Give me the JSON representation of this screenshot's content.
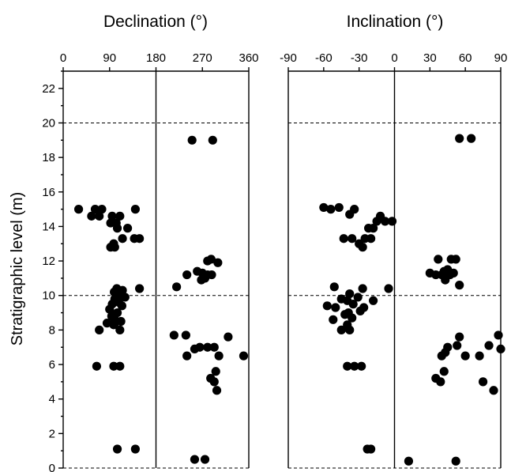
{
  "chart_data": {
    "type": "scatter",
    "ylabel": "Stratigraphic level (m)",
    "ylim": [
      0,
      23
    ],
    "yticks": [
      0,
      2,
      4,
      6,
      8,
      10,
      12,
      14,
      16,
      18,
      20,
      22
    ],
    "reference_lines_y": [
      10,
      20,
      0
    ],
    "panels": [
      {
        "title": "Declination (°)",
        "xlim": [
          0,
          360
        ],
        "xticks": [
          0,
          90,
          180,
          270,
          360
        ],
        "divider_x": 180,
        "points": [
          [
            30,
            15.0
          ],
          [
            62,
            15.0
          ],
          [
            75,
            15.0
          ],
          [
            140,
            15.0
          ],
          [
            55,
            14.6
          ],
          [
            70,
            14.6
          ],
          [
            95,
            14.6
          ],
          [
            110,
            14.6
          ],
          [
            92,
            14.2
          ],
          [
            103,
            14.2
          ],
          [
            125,
            13.9
          ],
          [
            105,
            13.9
          ],
          [
            115,
            13.3
          ],
          [
            138,
            13.3
          ],
          [
            148,
            13.3
          ],
          [
            98,
            13.0
          ],
          [
            92,
            12.8
          ],
          [
            100,
            12.8
          ],
          [
            148,
            10.4
          ],
          [
            104,
            10.4
          ],
          [
            115,
            10.3
          ],
          [
            99,
            10.2
          ],
          [
            110,
            10.0
          ],
          [
            120,
            9.9
          ],
          [
            100,
            9.8
          ],
          [
            108,
            9.6
          ],
          [
            95,
            9.5
          ],
          [
            114,
            9.4
          ],
          [
            90,
            9.2
          ],
          [
            105,
            9.0
          ],
          [
            94,
            8.8
          ],
          [
            100,
            8.6
          ],
          [
            112,
            8.5
          ],
          [
            85,
            8.4
          ],
          [
            98,
            8.3
          ],
          [
            70,
            8.0
          ],
          [
            110,
            8.0
          ],
          [
            100,
            8.4
          ],
          [
            65,
            5.9
          ],
          [
            98,
            5.9
          ],
          [
            110,
            5.9
          ],
          [
            105,
            1.1
          ],
          [
            140,
            1.1
          ],
          [
            220,
            10.5
          ],
          [
            240,
            11.2
          ],
          [
            260,
            11.4
          ],
          [
            270,
            11.3
          ],
          [
            280,
            11.2
          ],
          [
            288,
            11.2
          ],
          [
            275,
            11.0
          ],
          [
            268,
            10.9
          ],
          [
            287,
            12.1
          ],
          [
            280,
            12.0
          ],
          [
            300,
            11.9
          ],
          [
            250,
            19.0
          ],
          [
            290,
            19.0
          ],
          [
            215,
            7.7
          ],
          [
            238,
            7.7
          ],
          [
            320,
            7.6
          ],
          [
            265,
            7.0
          ],
          [
            280,
            7.0
          ],
          [
            293,
            7.0
          ],
          [
            255,
            6.9
          ],
          [
            240,
            6.5
          ],
          [
            302,
            6.5
          ],
          [
            350,
            6.5
          ],
          [
            296,
            5.6
          ],
          [
            286,
            5.2
          ],
          [
            293,
            5.0
          ],
          [
            298,
            4.5
          ],
          [
            255,
            0.5
          ],
          [
            275,
            0.5
          ]
        ]
      },
      {
        "title": "Inclination (°)",
        "xlim": [
          -90,
          90
        ],
        "xticks": [
          -90,
          -60,
          -30,
          0,
          30,
          60,
          90
        ],
        "divider_x": 0,
        "points": [
          [
            -60,
            15.1
          ],
          [
            -54,
            15.0
          ],
          [
            -47,
            15.1
          ],
          [
            -38,
            14.7
          ],
          [
            -34,
            15.0
          ],
          [
            -12,
            14.6
          ],
          [
            -15,
            14.3
          ],
          [
            -8,
            14.3
          ],
          [
            -2,
            14.3
          ],
          [
            -22,
            13.9
          ],
          [
            -18,
            13.9
          ],
          [
            -43,
            13.3
          ],
          [
            -36,
            13.3
          ],
          [
            -25,
            13.3
          ],
          [
            -20,
            13.3
          ],
          [
            -30,
            13.0
          ],
          [
            -27,
            12.8
          ],
          [
            -51,
            10.5
          ],
          [
            -27,
            10.4
          ],
          [
            -5,
            10.4
          ],
          [
            -38,
            10.1
          ],
          [
            -31,
            9.9
          ],
          [
            -45,
            9.8
          ],
          [
            -40,
            9.7
          ],
          [
            -18,
            9.7
          ],
          [
            -57,
            9.4
          ],
          [
            -50,
            9.3
          ],
          [
            -35,
            9.5
          ],
          [
            -26,
            9.3
          ],
          [
            -29,
            9.1
          ],
          [
            -39,
            9.0
          ],
          [
            -42,
            8.9
          ],
          [
            -36,
            8.7
          ],
          [
            -52,
            8.6
          ],
          [
            -40,
            8.3
          ],
          [
            -45,
            8.0
          ],
          [
            -38,
            8.0
          ],
          [
            -40,
            5.9
          ],
          [
            -34,
            5.9
          ],
          [
            -28,
            5.9
          ],
          [
            -23,
            1.1
          ],
          [
            -20,
            1.1
          ],
          [
            55,
            19.1
          ],
          [
            65,
            19.1
          ],
          [
            37,
            12.1
          ],
          [
            48,
            12.1
          ],
          [
            52,
            12.1
          ],
          [
            30,
            11.3
          ],
          [
            35,
            11.2
          ],
          [
            40,
            11.2
          ],
          [
            45,
            11.5
          ],
          [
            42,
            11.4
          ],
          [
            47,
            11.2
          ],
          [
            50,
            11.3
          ],
          [
            43,
            10.9
          ],
          [
            55,
            10.6
          ],
          [
            55,
            7.6
          ],
          [
            88,
            7.7
          ],
          [
            45,
            7.0
          ],
          [
            53,
            7.1
          ],
          [
            80,
            7.1
          ],
          [
            90,
            6.9
          ],
          [
            43,
            6.7
          ],
          [
            60,
            6.5
          ],
          [
            72,
            6.5
          ],
          [
            40,
            6.5
          ],
          [
            42,
            5.6
          ],
          [
            75,
            5.0
          ],
          [
            35,
            5.2
          ],
          [
            39,
            5.0
          ],
          [
            84,
            4.5
          ],
          [
            12,
            0.4
          ],
          [
            52,
            0.4
          ]
        ]
      }
    ]
  }
}
